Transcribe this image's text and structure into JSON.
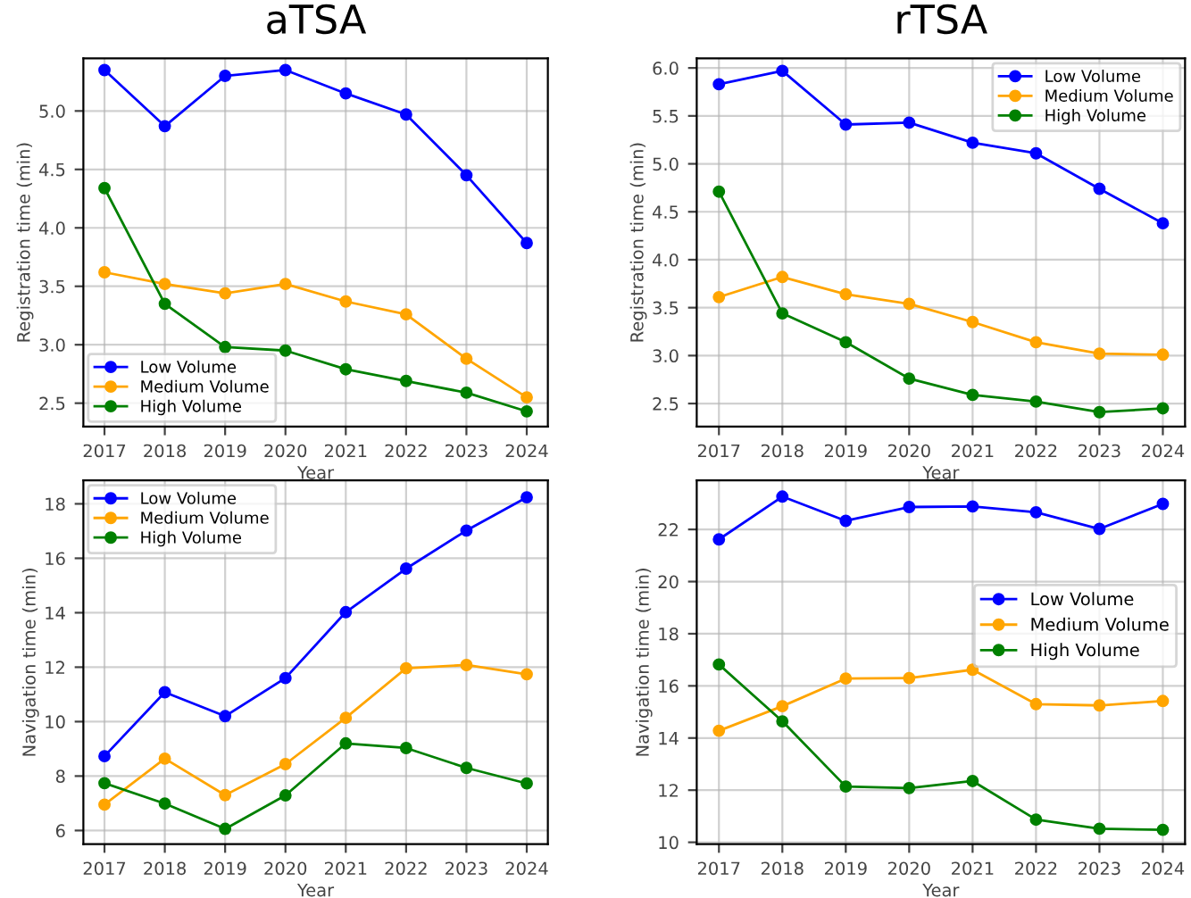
{
  "chart_data": [
    {
      "type": "line",
      "title": "aTSA",
      "xlabel": "Year",
      "ylabel": "Registration time (min)",
      "x": [
        2017,
        2018,
        2019,
        2020,
        2021,
        2022,
        2023,
        2024
      ],
      "xlim": [
        2016.65,
        2024.35
      ],
      "xticks": [
        2017,
        2018,
        2019,
        2020,
        2021,
        2022,
        2023,
        2024
      ],
      "ylim": [
        2.3,
        5.45
      ],
      "yticks": [
        {
          "value": 2.5,
          "label": "2.5"
        },
        {
          "value": 3.0,
          "label": "3.0"
        },
        {
          "value": 3.5,
          "label": "3.5"
        },
        {
          "value": 4.0,
          "label": "4.0"
        },
        {
          "value": 4.5,
          "label": "4.5"
        },
        {
          "value": 5.0,
          "label": "5.0"
        }
      ],
      "grid": true,
      "legend": "bottom left",
      "marker": "circle",
      "line_style": "solid",
      "series": [
        {
          "name": "Low Volume",
          "color": "#0000ff",
          "values": [
            5.35,
            4.87,
            5.3,
            5.35,
            5.15,
            4.97,
            4.45,
            3.87
          ]
        },
        {
          "name": "Medium Volume",
          "color": "#ffa500",
          "values": [
            3.62,
            3.52,
            3.44,
            3.52,
            3.37,
            3.26,
            2.88,
            2.55
          ]
        },
        {
          "name": "High Volume",
          "color": "#008000",
          "values": [
            4.34,
            3.35,
            2.98,
            2.95,
            2.79,
            2.69,
            2.59,
            2.43
          ]
        }
      ]
    },
    {
      "type": "line",
      "title": "rTSA",
      "xlabel": "Year",
      "ylabel": "Registration time (min)",
      "x": [
        2017,
        2018,
        2019,
        2020,
        2021,
        2022,
        2023,
        2024
      ],
      "xlim": [
        2016.65,
        2024.35
      ],
      "xticks": [
        2017,
        2018,
        2019,
        2020,
        2021,
        2022,
        2023,
        2024
      ],
      "ylim": [
        2.26,
        6.1
      ],
      "yticks": [
        {
          "value": 2.5,
          "label": "2.5"
        },
        {
          "value": 3.0,
          "label": "3.0"
        },
        {
          "value": 3.5,
          "label": "3.5"
        },
        {
          "value": 4.0,
          "label": "4.0"
        },
        {
          "value": 4.5,
          "label": "4.5"
        },
        {
          "value": 5.0,
          "label": "5.0"
        },
        {
          "value": 5.5,
          "label": "5.5"
        },
        {
          "value": 6.0,
          "label": "6.0"
        }
      ],
      "grid": true,
      "legend": "top right",
      "marker": "circle",
      "line_style": "solid",
      "series": [
        {
          "name": "Low Volume",
          "color": "#0000ff",
          "values": [
            5.83,
            5.97,
            5.41,
            5.43,
            5.22,
            5.11,
            4.74,
            4.38
          ]
        },
        {
          "name": "Medium Volume",
          "color": "#ffa500",
          "values": [
            3.61,
            3.82,
            3.64,
            3.54,
            3.35,
            3.14,
            3.02,
            3.01
          ]
        },
        {
          "name": "High Volume",
          "color": "#008000",
          "values": [
            4.71,
            3.44,
            3.14,
            2.76,
            2.59,
            2.52,
            2.41,
            2.45
          ]
        }
      ]
    },
    {
      "type": "line",
      "xlabel": "Year",
      "ylabel": "Navigation time (min)",
      "x": [
        2017,
        2018,
        2019,
        2020,
        2021,
        2022,
        2023,
        2024
      ],
      "xlim": [
        2016.65,
        2024.35
      ],
      "xticks": [
        2017,
        2018,
        2019,
        2020,
        2021,
        2022,
        2023,
        2024
      ],
      "ylim": [
        5.5,
        18.86
      ],
      "yticks": [
        6,
        8,
        10,
        12,
        14,
        16,
        18
      ],
      "grid": true,
      "legend": "top left",
      "marker": "circle",
      "line_style": "solid",
      "series": [
        {
          "name": "Low Volume",
          "color": "#0000ff",
          "values": [
            8.73,
            11.08,
            10.2,
            11.6,
            14.02,
            15.62,
            17.02,
            18.24
          ]
        },
        {
          "name": "Medium Volume",
          "color": "#ffa500",
          "values": [
            6.95,
            8.64,
            7.3,
            8.44,
            10.14,
            11.96,
            12.08,
            11.74
          ]
        },
        {
          "name": "High Volume",
          "color": "#008000",
          "values": [
            7.74,
            6.99,
            6.06,
            7.29,
            9.2,
            9.03,
            8.3,
            7.73
          ]
        }
      ]
    },
    {
      "type": "line",
      "xlabel": "Year",
      "ylabel": "Navigation time (min)",
      "x": [
        2017,
        2018,
        2019,
        2020,
        2021,
        2022,
        2023,
        2024
      ],
      "xlim": [
        2016.65,
        2024.35
      ],
      "xticks": [
        2017,
        2018,
        2019,
        2020,
        2021,
        2022,
        2023,
        2024
      ],
      "ylim": [
        9.93,
        23.88
      ],
      "yticks": [
        10,
        12,
        14,
        16,
        18,
        20,
        22
      ],
      "grid": true,
      "legend": "center right",
      "marker": "circle",
      "line_style": "solid",
      "series": [
        {
          "name": "Low Volume",
          "color": "#0000ff",
          "values": [
            21.62,
            23.26,
            22.33,
            22.86,
            22.88,
            22.66,
            22.02,
            22.98
          ]
        },
        {
          "name": "Medium Volume",
          "color": "#ffa500",
          "values": [
            14.28,
            15.22,
            16.28,
            16.3,
            16.62,
            15.3,
            15.25,
            15.42
          ]
        },
        {
          "name": "High Volume",
          "color": "#008000",
          "values": [
            16.82,
            14.64,
            12.14,
            12.08,
            12.35,
            10.87,
            10.52,
            10.48
          ]
        }
      ]
    }
  ]
}
